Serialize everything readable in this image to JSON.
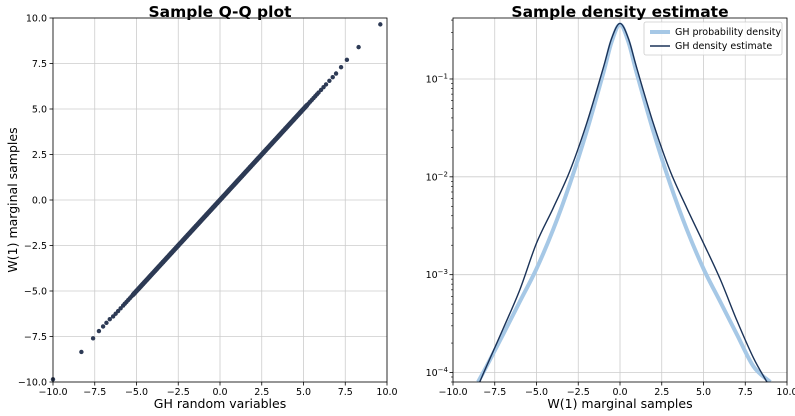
{
  "colors": {
    "qq_points": "#2d3a55",
    "pdf_line": "#a6c8e6",
    "kde_line": "#1b3358",
    "grid": "#cccccc"
  },
  "chart_data": [
    {
      "type": "scatter",
      "title": "Sample Q-Q plot",
      "xlabel": "GH random variables",
      "ylabel": "W(1) marginal samples",
      "xlim": [
        -10,
        10
      ],
      "ylim": [
        -10,
        10
      ],
      "grid": true,
      "xticks": [
        "−10.0",
        "−7.5",
        "−5.0",
        "−2.5",
        "0.0",
        "2.5",
        "5.0",
        "7.5",
        "10.0"
      ],
      "yticks": [
        "−10.0",
        "−7.5",
        "−5.0",
        "−2.5",
        "0.0",
        "2.5",
        "5.0",
        "7.5",
        "10.0"
      ],
      "tail_points": [
        [
          -10.0,
          -9.85
        ],
        [
          -8.3,
          -8.35
        ],
        [
          -7.6,
          -7.6
        ],
        [
          -7.25,
          -7.2
        ],
        [
          -7.0,
          -6.95
        ],
        [
          -6.8,
          -6.75
        ],
        [
          -6.6,
          -6.55
        ],
        [
          -6.4,
          -6.4
        ],
        [
          -6.25,
          -6.25
        ],
        [
          -6.1,
          -6.1
        ],
        [
          -5.95,
          -5.95
        ],
        [
          -5.8,
          -5.8
        ],
        [
          -5.7,
          -5.7
        ],
        [
          -5.6,
          -5.6
        ],
        [
          -5.5,
          -5.5
        ],
        [
          -5.4,
          -5.4
        ],
        [
          -5.3,
          -5.3
        ],
        [
          -5.2,
          -5.2
        ],
        [
          5.2,
          5.2
        ],
        [
          5.3,
          5.3
        ],
        [
          5.4,
          5.4
        ],
        [
          5.5,
          5.5
        ],
        [
          5.6,
          5.6
        ],
        [
          5.7,
          5.7
        ],
        [
          5.8,
          5.8
        ],
        [
          5.9,
          5.9
        ],
        [
          6.05,
          6.05
        ],
        [
          6.2,
          6.2
        ],
        [
          6.35,
          6.35
        ],
        [
          6.55,
          6.55
        ],
        [
          6.75,
          6.75
        ],
        [
          6.95,
          6.95
        ],
        [
          7.25,
          7.3
        ],
        [
          7.6,
          7.7
        ],
        [
          8.3,
          8.4
        ],
        [
          9.6,
          9.65
        ]
      ],
      "dense_range": [
        -5.2,
        5.2
      ]
    },
    {
      "type": "line",
      "title": "Sample density estimate",
      "xlabel": "W(1) marginal samples",
      "ylabel": "",
      "xlim": [
        -10,
        10
      ],
      "ylim": [
        8e-05,
        0.42
      ],
      "yscale": "log",
      "grid": true,
      "legend_position": "top-right",
      "xticks": [
        "−10.0",
        "−7.5",
        "−5.0",
        "−2.5",
        "0.0",
        "2.5",
        "5.0",
        "7.5",
        "10.0"
      ],
      "yticks": [
        {
          "value": 0.0001,
          "base": "10",
          "exp": "−4"
        },
        {
          "value": 0.001,
          "base": "10",
          "exp": "−3"
        },
        {
          "value": 0.01,
          "base": "10",
          "exp": "−2"
        },
        {
          "value": 0.1,
          "base": "10",
          "exp": "−1"
        }
      ],
      "series": [
        {
          "name": "GH probability density",
          "x": [
            -8.5,
            -8.0,
            -7.0,
            -6.0,
            -5.0,
            -4.0,
            -3.0,
            -2.0,
            -1.0,
            -0.5,
            0.0,
            0.5,
            1.0,
            2.0,
            3.0,
            4.0,
            5.0,
            6.0,
            7.0,
            8.0,
            9.0
          ],
          "y": [
            8e-05,
            0.000115,
            0.000245,
            0.00053,
            0.00115,
            0.0029,
            0.0085,
            0.029,
            0.115,
            0.24,
            0.36,
            0.24,
            0.115,
            0.029,
            0.0085,
            0.0029,
            0.00115,
            0.00053,
            0.000245,
            0.000115,
            8e-05
          ]
        },
        {
          "name": "GH density estimate",
          "x": [
            -8.4,
            -8.0,
            -7.0,
            -6.0,
            -5.0,
            -4.0,
            -3.0,
            -2.0,
            -1.0,
            -0.5,
            0.0,
            0.5,
            1.0,
            2.0,
            3.0,
            4.0,
            5.0,
            6.0,
            7.0,
            8.0,
            8.8
          ],
          "y": [
            8e-05,
            0.000115,
            0.00028,
            0.0007,
            0.0021,
            0.0048,
            0.0115,
            0.035,
            0.13,
            0.26,
            0.37,
            0.26,
            0.13,
            0.035,
            0.0115,
            0.0048,
            0.0021,
            0.0009,
            0.00034,
            0.00014,
            8e-05
          ]
        }
      ]
    }
  ]
}
